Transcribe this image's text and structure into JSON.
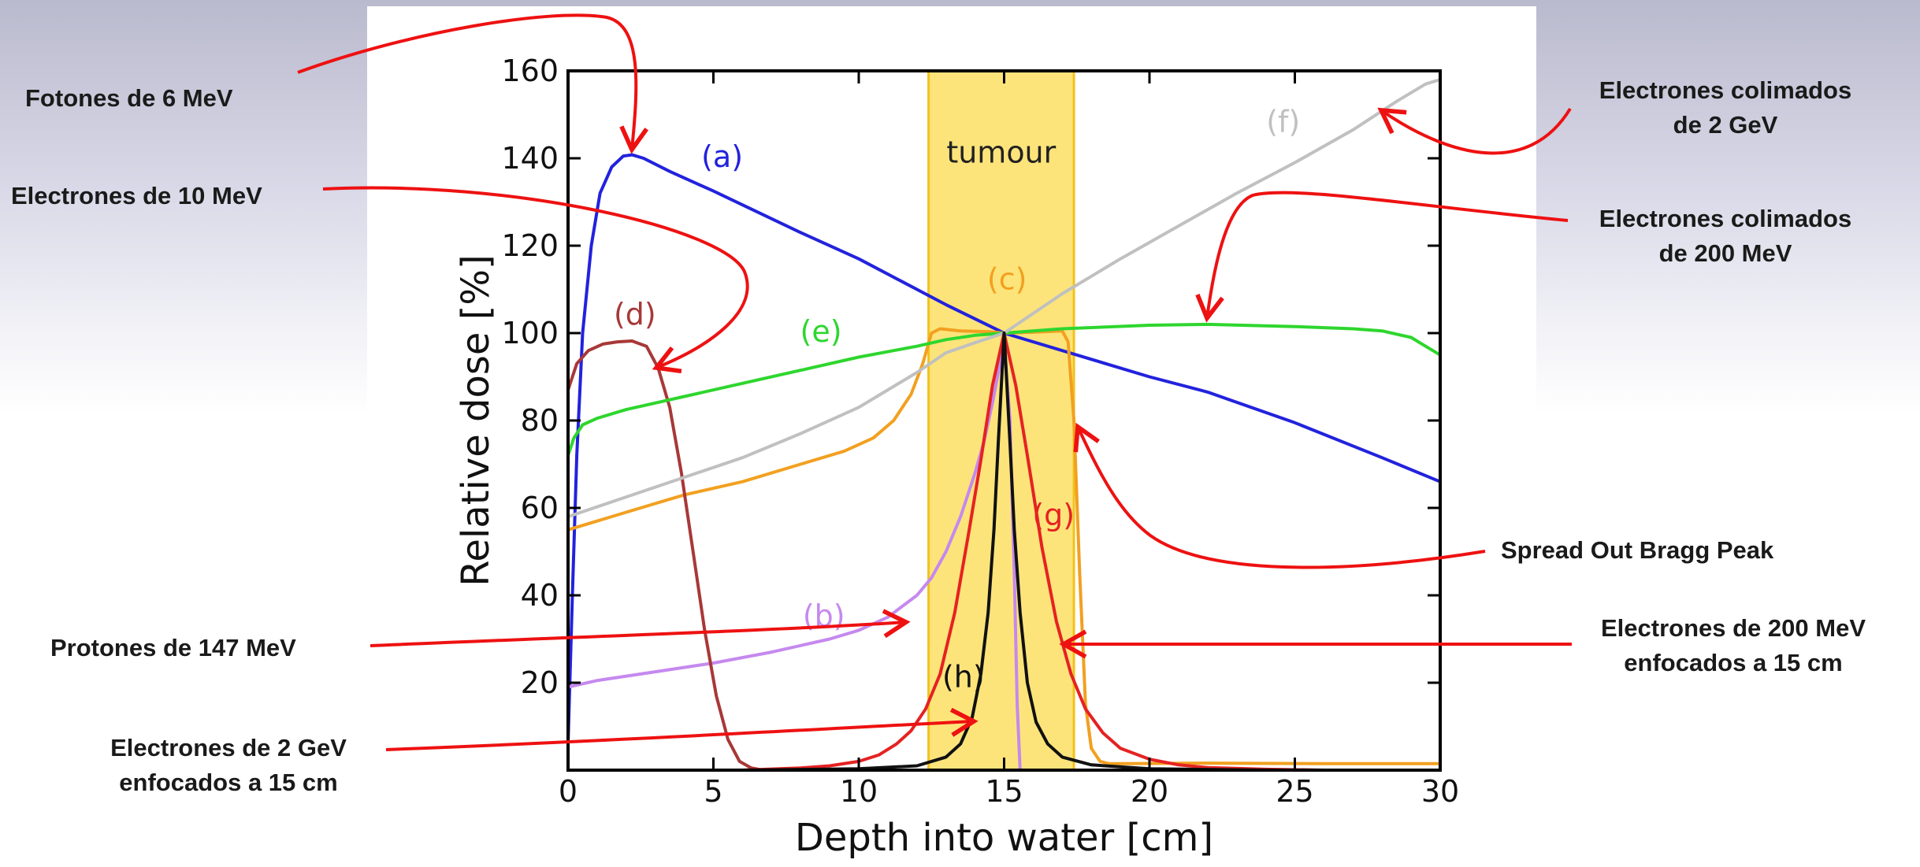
{
  "chart_data": {
    "type": "line",
    "xlabel": "Depth into water [cm]",
    "ylabel": "Relative dose [%]",
    "xlim": [
      0,
      30
    ],
    "ylim": [
      0,
      160
    ],
    "xticks": [
      0,
      5,
      10,
      15,
      20,
      25,
      30
    ],
    "yticks": [
      20,
      40,
      60,
      80,
      100,
      120,
      140,
      160
    ],
    "grid": false,
    "legend": "none",
    "band": {
      "label": "tumour",
      "from": 12.4,
      "to": 17.4,
      "color": "#fde47a",
      "edge_color": "#f2c21c"
    },
    "series": [
      {
        "name": "(a)",
        "color": "#2222dd",
        "label_at": [
          5.3,
          138
        ],
        "x": [
          0,
          0.15,
          0.3,
          0.5,
          0.8,
          1.1,
          1.5,
          1.9,
          2.2,
          2.6,
          3.5,
          5,
          8,
          10,
          12,
          13,
          15,
          18,
          20,
          22,
          25,
          28,
          30
        ],
        "y": [
          6,
          40,
          72,
          100,
          120,
          132,
          138,
          140.5,
          140.8,
          140,
          137,
          132.5,
          123,
          117,
          110,
          106.5,
          100,
          94,
          90,
          86.5,
          79.5,
          71.5,
          66
        ]
      },
      {
        "name": "(b)",
        "color": "#c589ee",
        "label_at": [
          8.8,
          33
        ],
        "x": [
          0,
          1,
          3,
          5,
          7,
          9,
          10,
          11,
          12,
          12.5,
          13,
          13.5,
          14,
          14.3,
          14.6,
          14.8,
          15,
          15.2,
          15.35,
          15.45,
          15.55
        ],
        "y": [
          19,
          20.5,
          22.5,
          24.5,
          27,
          30,
          32,
          35,
          40,
          44,
          50,
          58,
          68,
          75,
          84,
          91,
          98,
          80,
          45,
          15,
          0
        ]
      },
      {
        "name": "(c)",
        "color": "#f2a020",
        "label_at": [
          15.1,
          110
        ],
        "x": [
          0,
          2,
          4,
          6,
          8,
          9.5,
          10.5,
          11.2,
          11.8,
          12.2,
          12.5,
          12.8,
          13.5,
          14.5,
          15,
          16,
          17,
          17.2,
          17.4,
          17.6,
          17.8,
          18,
          18.3,
          18.6,
          19,
          22,
          26,
          30
        ],
        "y": [
          55,
          59,
          63,
          66,
          70,
          73,
          76,
          80,
          86,
          93,
          100,
          101,
          100.5,
          100.3,
          100,
          100.2,
          100.5,
          98,
          80,
          45,
          15,
          5,
          2,
          1.5,
          1.5,
          1.6,
          1.5,
          1.5
        ]
      },
      {
        "name": "(d)",
        "color": "#a83838",
        "label_at": [
          2.3,
          102
        ],
        "x": [
          0,
          0.3,
          0.7,
          1.2,
          1.7,
          2.2,
          2.7,
          3.1,
          3.5,
          3.9,
          4.3,
          4.7,
          5.1,
          5.5,
          5.9,
          6.3,
          6.7,
          7
        ],
        "y": [
          87,
          93,
          96,
          97.5,
          98,
          98.2,
          97,
          92,
          83,
          68,
          50,
          32,
          17,
          7,
          2,
          0.5,
          0,
          0
        ]
      },
      {
        "name": "(e)",
        "color": "#2ed62e",
        "label_at": [
          8.7,
          98
        ],
        "x": [
          0,
          0.2,
          0.5,
          1,
          2,
          4,
          6,
          8,
          10,
          12,
          13,
          14,
          15,
          17,
          20,
          22,
          25,
          27,
          28,
          29,
          29.5,
          30
        ],
        "y": [
          72,
          76,
          79,
          80.5,
          82.5,
          85.5,
          88.5,
          91.5,
          94.5,
          97,
          98.5,
          99.5,
          100,
          101,
          101.8,
          102,
          101.5,
          101,
          100.5,
          99,
          97,
          95
        ]
      },
      {
        "name": "(f)",
        "color": "#c0c0c0",
        "label_at": [
          24.6,
          146
        ],
        "x": [
          0,
          2,
          4,
          6,
          8,
          10,
          12,
          13,
          14,
          15,
          17,
          19,
          21,
          23,
          25,
          27,
          28.5,
          29.5,
          30
        ],
        "y": [
          58,
          62.5,
          67,
          71.5,
          77,
          83,
          91,
          95.5,
          97.8,
          100,
          109,
          117,
          124.5,
          132,
          139,
          146.5,
          153,
          157,
          158
        ]
      },
      {
        "name": "(g)",
        "color": "#e52222",
        "label_at": [
          16.7,
          56
        ],
        "x": [
          6,
          8,
          9,
          10,
          10.7,
          11.3,
          11.8,
          12.3,
          12.8,
          13.3,
          13.8,
          14.2,
          14.6,
          15,
          15.4,
          15.8,
          16.3,
          16.8,
          17.3,
          17.8,
          18.4,
          19,
          20,
          21,
          22,
          24,
          26,
          30
        ],
        "y": [
          0,
          0.5,
          1,
          2,
          3.5,
          6,
          9,
          14,
          22,
          36,
          55,
          71,
          88,
          100,
          88,
          72,
          51,
          34,
          22,
          14,
          8.5,
          5,
          2.5,
          1.2,
          0.6,
          0.2,
          0,
          0
        ]
      },
      {
        "name": "(h)",
        "color": "#111111",
        "label_at": [
          13.6,
          19
        ],
        "x": [
          6,
          10,
          12,
          13,
          13.5,
          13.9,
          14.2,
          14.45,
          14.65,
          14.8,
          15,
          15.2,
          15.35,
          15.55,
          15.8,
          16.1,
          16.5,
          17,
          18,
          20,
          24,
          30
        ],
        "y": [
          0,
          0.3,
          1,
          3,
          6,
          12,
          22,
          36,
          55,
          75,
          100,
          75,
          55,
          36,
          20,
          11,
          6,
          3,
          1.2,
          0.3,
          0,
          0
        ]
      }
    ]
  },
  "labels": {
    "fotones_6": "Fotones de 6 MeV",
    "e10": "Electrones de 10 MeV",
    "p147": "Protones de 147 MeV",
    "e2gev_f_1": "Electrones de 2 GeV",
    "e2gev_f_2": "enfocados a 15 cm",
    "ecol2gev_1": "Electrones colimados",
    "ecol2gev_2": "de 2 GeV",
    "ecol200_1": "Electrones colimados",
    "ecol200_2": "de 200 MeV",
    "sobp": "Spread Out Bragg Peak",
    "e200f_1": "Electrones de 200 MeV",
    "e200f_2": "enfocados a 15 cm"
  }
}
